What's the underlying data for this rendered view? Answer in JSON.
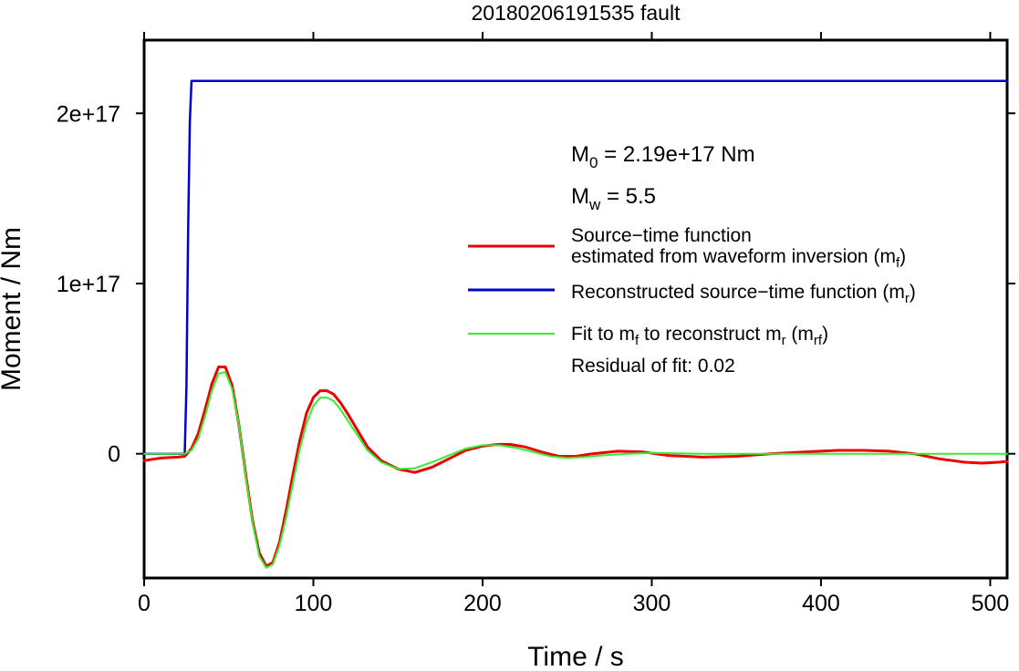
{
  "chart_data": {
    "type": "line",
    "title": "20180206191535 fault",
    "xlabel": "Time / s",
    "ylabel": "Moment / Nm",
    "xlim": [
      0,
      510
    ],
    "ylim": [
      -7.3e+16,
      2.43e+17
    ],
    "x_ticks": [
      0,
      100,
      200,
      300,
      400,
      500
    ],
    "x_tick_labels": [
      "0",
      "100",
      "200",
      "300",
      "400",
      "500"
    ],
    "y_ticks": [
      0,
      1e+17,
      2e+17
    ],
    "y_tick_labels": [
      "0",
      "1e+17",
      "2e+17"
    ],
    "grid": false,
    "legend_position": "right",
    "annotations": {
      "m0": {
        "prefix": "M",
        "sub": "0",
        "text": " = 2.19e+17 Nm"
      },
      "mw": {
        "prefix": "M",
        "sub": "w",
        "text": " = 5.5"
      },
      "residual": "Residual of fit: 0.02"
    },
    "legend": [
      {
        "line1": "Source−time function",
        "line2": "estimated from waveform inversion (m",
        "sub": "f",
        "after": ")"
      },
      {
        "text": "Reconstructed source−time function (m",
        "sub": "r",
        "after": ")"
      },
      {
        "t1": "Fit to m",
        "s1": "f",
        "t2": " to reconstruct m",
        "s2": "r",
        "t3": " (m",
        "s3": "rf",
        "t4": ")"
      }
    ],
    "series": [
      {
        "color": "#ee0000",
        "x": [
          0,
          10,
          20,
          24,
          28,
          32,
          36,
          40,
          44,
          48,
          52,
          56,
          60,
          64,
          68,
          72,
          76,
          80,
          84,
          88,
          92,
          96,
          100,
          104,
          108,
          112,
          116,
          120,
          126,
          132,
          140,
          150,
          160,
          170,
          180,
          190,
          200,
          210,
          216,
          225,
          235,
          245,
          255,
          265,
          280,
          295,
          310,
          330,
          350,
          370,
          390,
          410,
          425,
          440,
          455,
          470,
          485,
          495,
          505,
          510
        ],
        "y": [
          -4000000000000000.0,
          -2500000000000000.0,
          -2000000000000000.0,
          -1500000000000000.0,
          3000000000000000.0,
          1.2e+16,
          2.6e+16,
          4.1e+16,
          5.1e+16,
          5.1e+16,
          4e+16,
          1.7e+16,
          -1.2e+16,
          -3.9e+16,
          -5.8e+16,
          -6.6e+16,
          -6.4e+16,
          -5.2e+16,
          -3.3e+16,
          -1.2e+16,
          8000000000000000.0,
          2.4e+16,
          3.3e+16,
          3.7e+16,
          3.7e+16,
          3.5e+16,
          3e+16,
          2.4e+16,
          1.4e+16,
          4000000000000000.0,
          -4000000000000000.0,
          -9000000000000000.0,
          -1.1e+16,
          -8000000000000000.0,
          -3000000000000000.0,
          2000000000000000.0,
          4500000000000000.0,
          5500000000000000.0,
          5500000000000000.0,
          4000000000000000.0,
          1000000000000000.0,
          -1500000000000000.0,
          -1500000000000000.0,
          0.0,
          1500000000000000.0,
          1000000000000000.0,
          -1000000000000000.0,
          -2000000000000000.0,
          -1500000000000000.0,
          0.0,
          1000000000000000.0,
          2000000000000000.0,
          2000000000000000.0,
          1500000000000000.0,
          0.0,
          -3000000000000000.0,
          -5000000000000000.0,
          -5500000000000000.0,
          -5000000000000000.0,
          -4500000000000000.0
        ]
      },
      {
        "color": "#0000cc",
        "x": [
          0,
          24,
          25,
          26,
          27,
          28,
          510
        ],
        "y": [
          0,
          0,
          4e+16,
          1.3e+17,
          1.95e+17,
          2.19e+17,
          2.19e+17
        ]
      },
      {
        "color": "#33ee33",
        "x": [
          0,
          24,
          28,
          32,
          36,
          40,
          44,
          48,
          52,
          56,
          60,
          64,
          68,
          72,
          76,
          80,
          84,
          88,
          92,
          96,
          100,
          104,
          108,
          112,
          116,
          120,
          126,
          132,
          140,
          150,
          160,
          170,
          180,
          190,
          200,
          210,
          220,
          230,
          240,
          250,
          260,
          270,
          285,
          300,
          330,
          360,
          400,
          450,
          510
        ],
        "y": [
          0,
          0,
          2000000000000000.0,
          9000000000000000.0,
          2.2e+16,
          3.7e+16,
          4.7e+16,
          4.8e+16,
          3.8e+16,
          1.7e+16,
          -1.3e+16,
          -4e+16,
          -6e+16,
          -6.7e+16,
          -6.5e+16,
          -5.4e+16,
          -3.7e+16,
          -1.7e+16,
          3000000000000000.0,
          1.8e+16,
          2.8e+16,
          3.3e+16,
          3.3e+16,
          3.1e+16,
          2.6e+16,
          2e+16,
          1.1e+16,
          2000000000000000.0,
          -5000000000000000.0,
          -9000000000000000.0,
          -8500000000000000.0,
          -5000000000000000.0,
          -1000000000000000.0,
          3000000000000000.0,
          5000000000000000.0,
          5000000000000000.0,
          3500000000000000.0,
          1000000000000000.0,
          -1500000000000000.0,
          -2500000000000000.0,
          -2000000000000000.0,
          -1000000000000000.0,
          0.0,
          500000000000000.0,
          0.0,
          0.0,
          0.0,
          0.0,
          0.0
        ]
      }
    ]
  }
}
